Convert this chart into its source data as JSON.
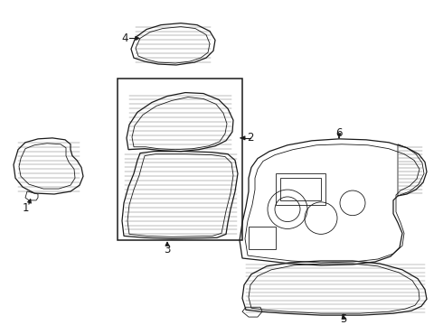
{
  "bg_color": "#ffffff",
  "line_color": "#1a1a1a",
  "figsize": [
    4.9,
    3.6
  ],
  "dpi": 100,
  "label_fontsize": 8.5
}
